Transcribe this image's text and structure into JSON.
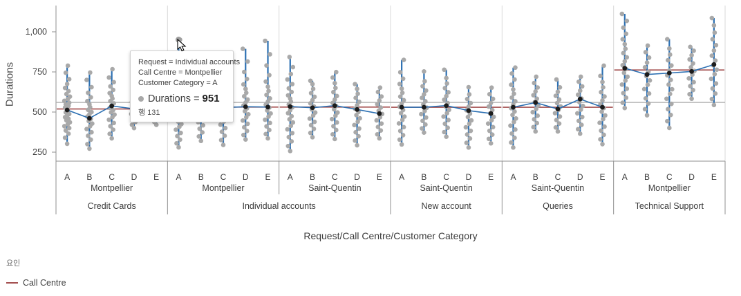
{
  "axes": {
    "y_title": "Durations",
    "x_title": "Request/Call Centre/Customer Category"
  },
  "legend": {
    "title": "요인",
    "items": [
      {
        "label": "Call Centre",
        "color": "#a34e4e"
      }
    ]
  },
  "tooltip": {
    "rows": [
      "Request = Individual accounts",
      "Call Centre = Montpellier",
      "Customer Category = A"
    ],
    "measure_label": "Durations",
    "separator": "=",
    "measure_value": "951",
    "row_ref": "행 131"
  },
  "chart_data": {
    "type": "scatter",
    "chart_kind": "variability chart: jittered duration points per cell, black cell means connected per group, red Call Centre factor mean line, gray grand mean line",
    "title": "",
    "ylabel": "Durations",
    "xlabel": "Request/Call Centre/Customer Category",
    "ylim": [
      190,
      1170
    ],
    "y_ticks": [
      250,
      500,
      750,
      1000
    ],
    "y_tick_labels": [
      "250",
      "500",
      "750",
      "1,000"
    ],
    "grid": false,
    "legend_position": "bottom-left",
    "grand_mean": 560,
    "factor_line": {
      "label": "Call Centre",
      "values": [
        519,
        531,
        531,
        530,
        530,
        762
      ]
    },
    "request_spans": [
      {
        "label": "Credit Cards",
        "groups": [
          0
        ]
      },
      {
        "label": "Individual accounts",
        "groups": [
          1,
          2
        ]
      },
      {
        "label": "New account",
        "groups": [
          3
        ]
      },
      {
        "label": "Queries",
        "groups": [
          4
        ]
      },
      {
        "label": "Technical Support",
        "groups": [
          5
        ]
      }
    ],
    "hovered_point": {
      "group_index": 1,
      "category": "A",
      "value": 951,
      "row": 131
    },
    "colors": {
      "point": "#a9a9a9",
      "mean_dot": "#1c1c1c",
      "mean_line": "#2b6fb2",
      "range_line": "#2b6fb2",
      "factor_line": "#a34e4e",
      "grand_mean_line": "#adadad",
      "separator": "#d9d9d9",
      "axis": "#8f8f8f"
    },
    "groups": [
      {
        "request": "Credit Cards",
        "call_centre": "Montpellier",
        "categories": [
          "A",
          "B",
          "C",
          "D",
          "E"
        ],
        "means": [
          513,
          461,
          538,
          520,
          512
        ],
        "cells": [
          {
            "category": "A",
            "mean": 513,
            "min": 302,
            "max": 789,
            "points": [
              302,
              340,
              365,
              385,
              400,
              412,
              424,
              436,
              448,
              458,
              468,
              478,
              488,
              498,
              508,
              518,
              528,
              538,
              548,
              558,
              570,
              582,
              596,
              612,
              630,
              650,
              675,
              705,
              745,
              789
            ]
          },
          {
            "category": "B",
            "mean": 461,
            "min": 272,
            "max": 746,
            "points": [
              272,
              300,
              328,
              352,
              374,
              394,
              412,
              428,
              444,
              458,
              472,
              486,
              500,
              514,
              530,
              548,
              568,
              592,
              620,
              655,
              700,
              746
            ]
          },
          {
            "category": "C",
            "mean": 538,
            "min": 336,
            "max": 767,
            "points": [
              336,
              364,
              390,
              412,
              432,
              452,
              468,
              484,
              498,
              512,
              526,
              540,
              554,
              568,
              584,
              600,
              618,
              638,
              660,
              686,
              715,
              767
            ]
          },
          {
            "category": "D",
            "mean": 520,
            "min": 400,
            "max": 690,
            "points": [
              400,
              420,
              438,
              456,
              472,
              488,
              504,
              518,
              532,
              548,
              564,
              582,
              602,
              625,
              655,
              690
            ]
          },
          {
            "category": "E",
            "mean": 512,
            "min": 420,
            "max": 660,
            "points": [
              420,
              438,
              455,
              472,
              488,
              503,
              518,
              533,
              548,
              565,
              583,
              604,
              630,
              660
            ]
          }
        ]
      },
      {
        "request": "Individual accounts",
        "call_centre": "Montpellier",
        "categories": [
          "A",
          "B",
          "C",
          "D",
          "E"
        ],
        "means": [
          525,
          520,
          528,
          533,
          531
        ],
        "cells": [
          {
            "category": "A",
            "mean": 525,
            "min": 280,
            "max": 951,
            "points": [
              280,
              305,
              328,
              350,
              370,
              390,
              408,
              425,
              441,
              457,
              472,
              487,
              502,
              517,
              532,
              547,
              562,
              578,
              595,
              614,
              636,
              662,
              695,
              740,
              951
            ]
          },
          {
            "category": "B",
            "mean": 520,
            "min": 320,
            "max": 700,
            "points": [
              320,
              348,
              373,
              396,
              417,
              437,
              456,
              474,
              492,
              510,
              528,
              546,
              565,
              585,
              607,
              632,
              662,
              700
            ]
          },
          {
            "category": "C",
            "mean": 528,
            "min": 295,
            "max": 720,
            "points": [
              295,
              325,
              352,
              377,
              400,
              421,
              441,
              460,
              479,
              497,
              515,
              533,
              551,
              570,
              590,
              612,
              637,
              666,
              700,
              720
            ]
          },
          {
            "category": "D",
            "mean": 533,
            "min": 329,
            "max": 894,
            "points": [
              329,
              357,
              382,
              405,
              427,
              447,
              467,
              486,
              505,
              523,
              541,
              559,
              578,
              598,
              620,
              644,
              672,
              706,
              750,
              815,
              894
            ]
          },
          {
            "category": "E",
            "mean": 531,
            "min": 336,
            "max": 944,
            "points": [
              336,
              363,
              388,
              411,
              432,
              452,
              472,
              491,
              510,
              528,
              546,
              565,
              585,
              607,
              631,
              658,
              690,
              730,
              790,
              860,
              944
            ]
          }
        ]
      },
      {
        "request": "Individual accounts",
        "call_centre": "Saint-Quentin",
        "categories": [
          "A",
          "B",
          "C",
          "D",
          "E"
        ],
        "means": [
          534,
          527,
          540,
          516,
          490
        ],
        "cells": [
          {
            "category": "A",
            "mean": 534,
            "min": 257,
            "max": 843,
            "points": [
              257,
              288,
              317,
              344,
              369,
              392,
              414,
              435,
              455,
              474,
              493,
              511,
              529,
              547,
              565,
              584,
              604,
              625,
              648,
              674,
              703,
              737,
              780,
              843
            ]
          },
          {
            "category": "B",
            "mean": 527,
            "min": 343,
            "max": 695,
            "points": [
              343,
              370,
              395,
              418,
              439,
              459,
              478,
              497,
              516,
              535,
              554,
              574,
              595,
              618,
              644,
              674,
              695
            ]
          },
          {
            "category": "C",
            "mean": 540,
            "min": 332,
            "max": 749,
            "points": [
              332,
              361,
              388,
              412,
              435,
              456,
              477,
              497,
              517,
              537,
              557,
              578,
              600,
              624,
              650,
              680,
              715,
              749
            ]
          },
          {
            "category": "D",
            "mean": 516,
            "min": 293,
            "max": 674,
            "points": [
              293,
              322,
              349,
              374,
              397,
              419,
              440,
              461,
              481,
              501,
              521,
              542,
              564,
              588,
              614,
              644,
              674
            ]
          },
          {
            "category": "E",
            "mean": 490,
            "min": 336,
            "max": 652,
            "points": [
              336,
              361,
              385,
              407,
              428,
              448,
              468,
              488,
              508,
              528,
              549,
              572,
              597,
              625,
              652
            ]
          }
        ]
      },
      {
        "request": "New account",
        "call_centre": "Saint-Quentin",
        "categories": [
          "A",
          "B",
          "C",
          "D",
          "E"
        ],
        "means": [
          530,
          530,
          540,
          509,
          491
        ],
        "cells": [
          {
            "category": "A",
            "mean": 530,
            "min": 298,
            "max": 825,
            "points": [
              298,
              328,
              356,
              382,
              406,
              429,
              451,
              472,
              493,
              513,
              533,
              553,
              574,
              596,
              620,
              646,
              675,
              708,
              748,
              825
            ]
          },
          {
            "category": "B",
            "mean": 530,
            "min": 372,
            "max": 753,
            "points": [
              372,
              398,
              422,
              445,
              466,
              487,
              507,
              527,
              547,
              567,
              588,
              610,
              634,
              661,
              692,
              753
            ]
          },
          {
            "category": "C",
            "mean": 540,
            "min": 346,
            "max": 764,
            "points": [
              346,
              375,
              402,
              427,
              450,
              472,
              493,
              514,
              535,
              556,
              577,
              599,
              623,
              649,
              678,
              712,
              764
            ]
          },
          {
            "category": "D",
            "mean": 509,
            "min": 279,
            "max": 655,
            "points": [
              279,
              308,
              335,
              360,
              383,
              405,
              427,
              448,
              469,
              490,
              511,
              533,
              556,
              581,
              610,
              655
            ]
          },
          {
            "category": "E",
            "mean": 491,
            "min": 305,
            "max": 652,
            "points": [
              305,
              333,
              359,
              383,
              406,
              428,
              449,
              470,
              491,
              512,
              534,
              557,
              582,
              611,
              652
            ]
          }
        ]
      },
      {
        "request": "Queries",
        "call_centre": "Saint-Quentin",
        "categories": [
          "A",
          "B",
          "C",
          "D",
          "E"
        ],
        "means": [
          530,
          559,
          519,
          581,
          530
        ],
        "cells": [
          {
            "category": "A",
            "mean": 530,
            "min": 279,
            "max": 777,
            "points": [
              279,
              310,
              339,
              366,
              391,
              415,
              438,
              460,
              482,
              503,
              524,
              545,
              567,
              590,
              614,
              641,
              670,
              703,
              740,
              777
            ]
          },
          {
            "category": "B",
            "mean": 559,
            "min": 379,
            "max": 720,
            "points": [
              379,
              406,
              431,
              455,
              477,
              499,
              520,
              541,
              562,
              583,
              605,
              628,
              653,
              681,
              720
            ]
          },
          {
            "category": "C",
            "mean": 519,
            "min": 379,
            "max": 703,
            "points": [
              379,
              404,
              428,
              450,
              472,
              493,
              514,
              535,
              556,
              578,
              601,
              626,
              654,
              703
            ]
          },
          {
            "category": "D",
            "mean": 581,
            "min": 365,
            "max": 720,
            "points": [
              365,
              393,
              420,
              445,
              469,
              492,
              515,
              538,
              561,
              584,
              608,
              633,
              660,
              689,
              720
            ]
          },
          {
            "category": "E",
            "mean": 530,
            "min": 300,
            "max": 789,
            "points": [
              300,
              330,
              358,
              384,
              409,
              433,
              456,
              479,
              502,
              525,
              548,
              572,
              597,
              624,
              654,
              687,
              725,
              789
            ]
          }
        ]
      },
      {
        "request": "Technical Support",
        "call_centre": "Montpellier",
        "categories": [
          "A",
          "B",
          "C",
          "D",
          "E"
        ],
        "means": [
          773,
          734,
          743,
          753,
          796
        ],
        "cells": [
          {
            "category": "A",
            "mean": 773,
            "min": 525,
            "max": 1112,
            "points": [
              525,
              558,
              589,
              618,
              645,
              671,
              696,
              720,
              744,
              768,
              792,
              816,
              841,
              867,
              894,
              923,
              954,
              988,
              1026,
              1068,
              1112
            ]
          },
          {
            "category": "B",
            "mean": 734,
            "min": 480,
            "max": 914,
            "points": [
              480,
              518,
              553,
              585,
              615,
              643,
              670,
              697,
              724,
              751,
              779,
              808,
              839,
              873,
              914
            ]
          },
          {
            "category": "C",
            "mean": 743,
            "min": 401,
            "max": 954,
            "points": [
              401,
              443,
              482,
              518,
              551,
              583,
              613,
              642,
              671,
              700,
              729,
              759,
              790,
              823,
              858,
              896,
              954
            ]
          },
          {
            "category": "D",
            "mean": 753,
            "min": 583,
            "max": 906,
            "points": [
              583,
              611,
              637,
              662,
              686,
              710,
              733,
              756,
              779,
              803,
              828,
              854,
              882,
              906
            ]
          },
          {
            "category": "E",
            "mean": 796,
            "min": 544,
            "max": 1086,
            "points": [
              544,
              581,
              615,
              647,
              678,
              707,
              736,
              764,
              792,
              821,
              851,
              883,
              917,
              954,
              995,
              1040,
              1086
            ]
          }
        ]
      }
    ]
  }
}
